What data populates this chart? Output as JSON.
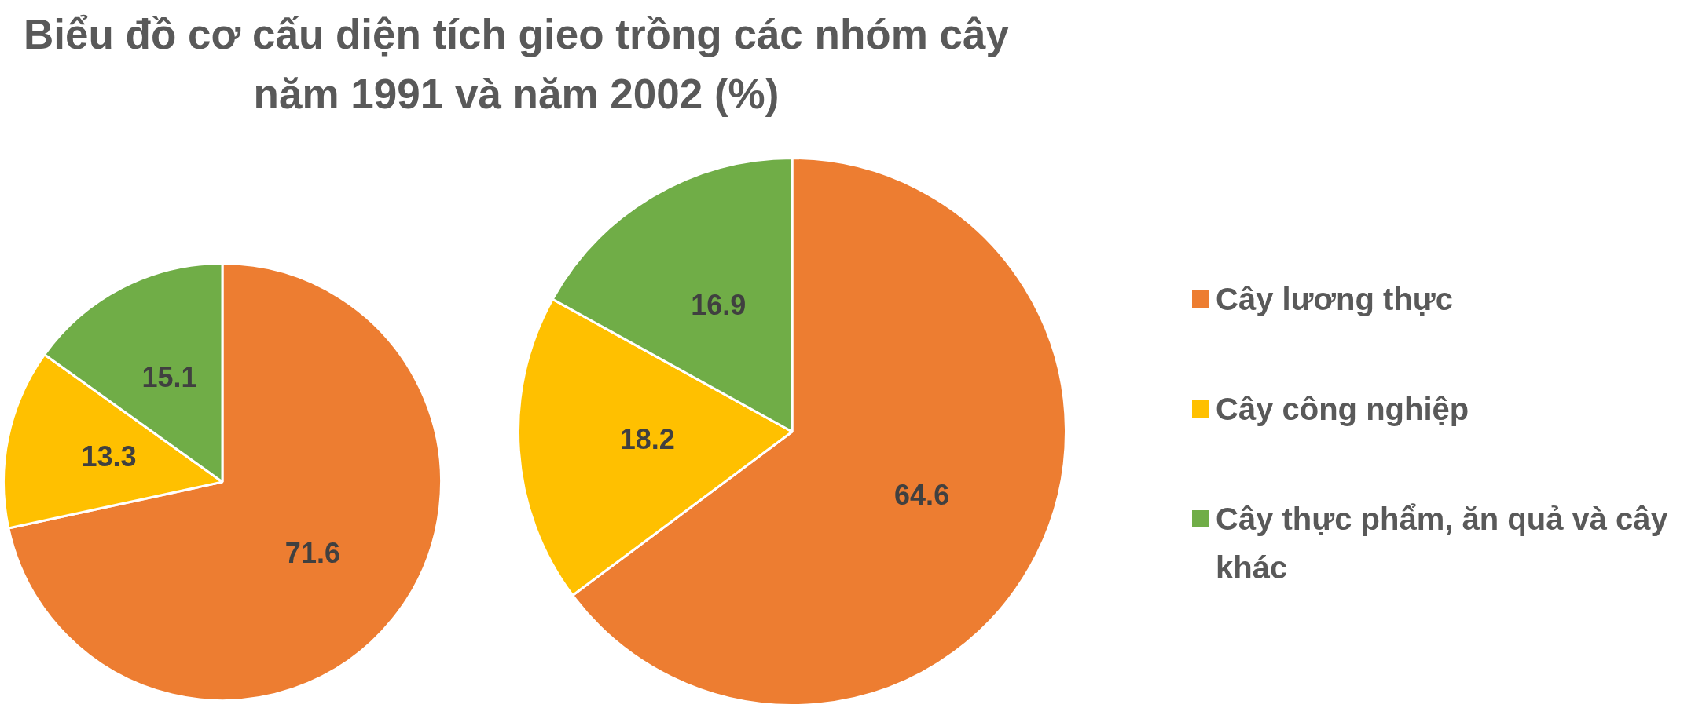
{
  "chart_data": [
    {
      "type": "pie",
      "title": "Biểu đồ cơ cấu diện tích gieo trồng các nhóm cây năm 1991 và năm 2002 (%)",
      "categories": [
        null,
        null,
        null
      ],
      "values": [
        71.6,
        13.3,
        15.1
      ],
      "colors": [
        "#ed7d31",
        "#ffc000",
        "#70ad47"
      ],
      "data_labels": true
    },
    {
      "type": "pie",
      "categories": [
        "Cây lương thực",
        "Cây công nghiệp",
        "Cây thực phẩm, ăn quả và cây khác"
      ],
      "values": [
        64.6,
        18.2,
        16.9
      ],
      "colors": [
        "#ed7d31",
        "#ffc000",
        "#70ad47"
      ],
      "data_labels": true,
      "legend": "right"
    }
  ]
}
